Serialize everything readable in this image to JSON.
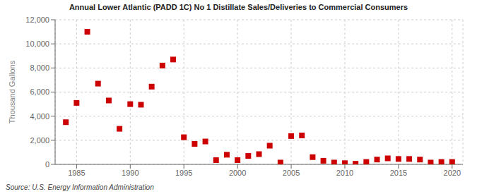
{
  "chart_data": {
    "type": "scatter",
    "title": "Annual Lower Atlantic (PADD 1C) No 1 Distillate Sales/Deliveries to Commercial Consumers",
    "ylabel": "Thousand Gallons",
    "annotations": [
      "Source: U.S. Energy Information Administration"
    ],
    "x": [
      1984,
      1985,
      1986,
      1987,
      1988,
      1989,
      1990,
      1991,
      1992,
      1993,
      1994,
      1995,
      1996,
      1997,
      1998,
      1999,
      2000,
      2001,
      2002,
      2003,
      2004,
      2005,
      2006,
      2007,
      2008,
      2009,
      2010,
      2011,
      2012,
      2013,
      2014,
      2015,
      2016,
      2017,
      2018,
      2019,
      2020
    ],
    "values": [
      3500,
      5100,
      11000,
      6700,
      5300,
      2950,
      5000,
      4950,
      6450,
      8200,
      8700,
      2250,
      1700,
      1900,
      350,
      800,
      350,
      700,
      850,
      1550,
      150,
      2350,
      2400,
      600,
      300,
      150,
      100,
      50,
      200,
      400,
      500,
      450,
      450,
      400,
      150,
      200,
      200
    ],
    "color": "#cc0000",
    "marker": "square",
    "xlim": [
      1983,
      2021
    ],
    "ylim": [
      0,
      12000
    ],
    "xticks": [
      1985,
      1990,
      1995,
      2000,
      2005,
      2010,
      2015,
      2020
    ],
    "yticks": [
      0,
      {
        "value": 2000,
        "label": "2,000"
      },
      {
        "value": 4000,
        "label": "4,000"
      },
      {
        "value": 6000,
        "label": "6,000"
      },
      {
        "value": 8000,
        "label": "8,000"
      },
      {
        "value": 10000,
        "label": "10,000"
      },
      {
        "value": 12000,
        "label": "12,000"
      }
    ],
    "grid": true
  }
}
